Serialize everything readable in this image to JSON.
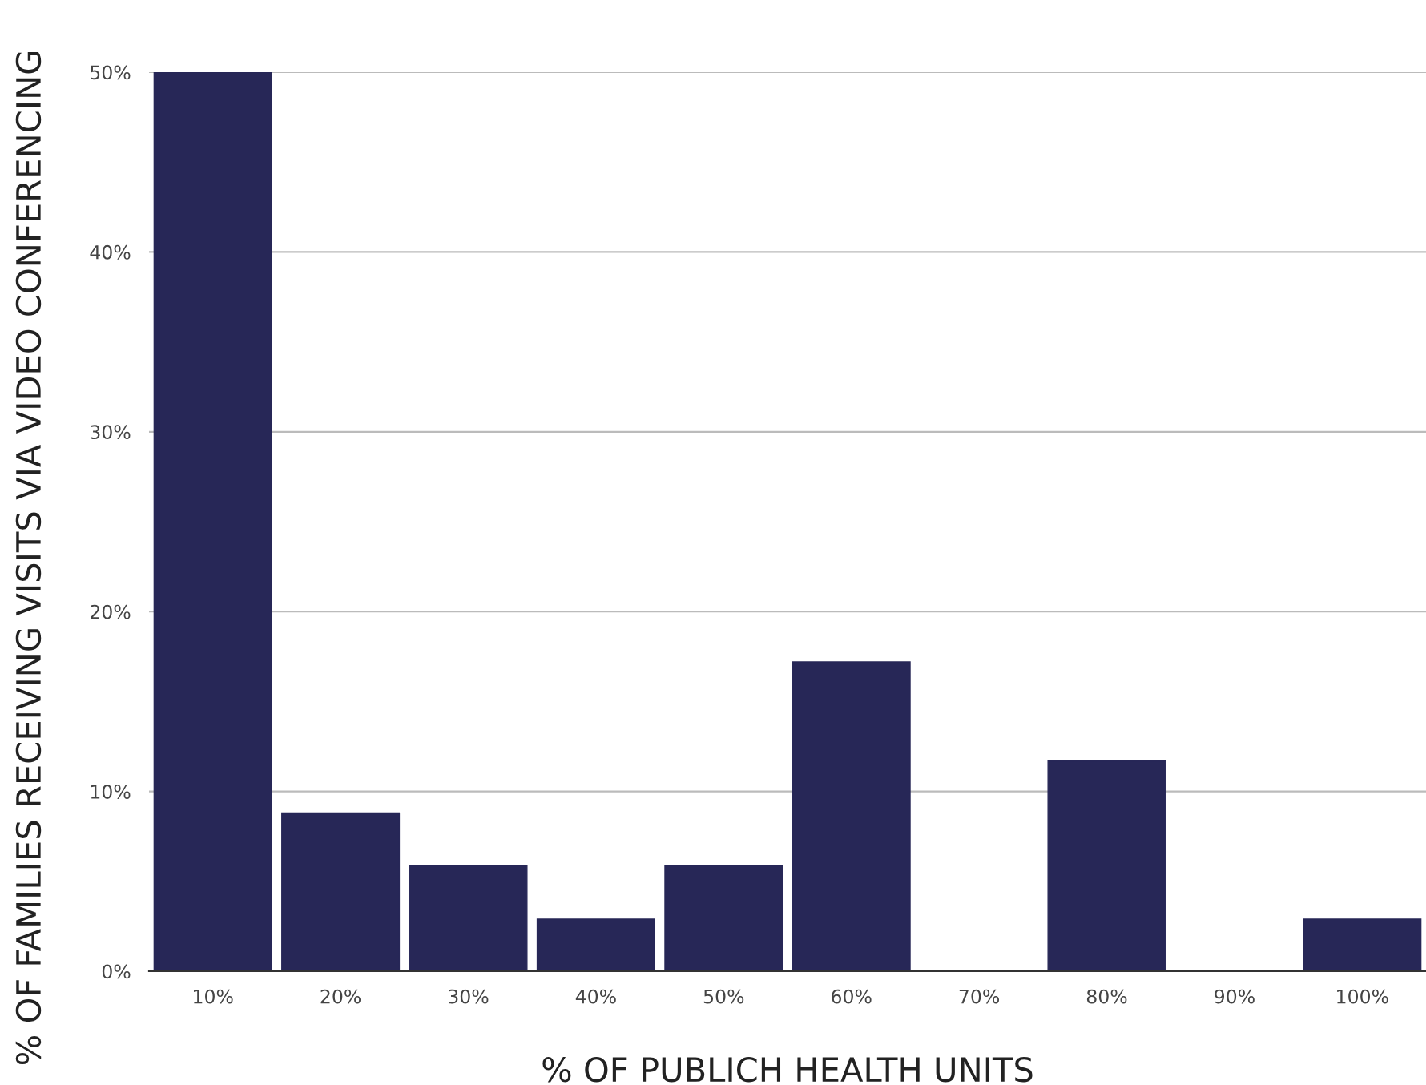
{
  "chart_data": {
    "type": "bar",
    "xlabel": "% OF PUBLICH HEALTH UNITS",
    "ylabel": "% OF FAMILIES RECEIVING VISITS VIA VIDEO CONFERENCING",
    "categories": [
      "10%",
      "20%",
      "30%",
      "40%",
      "50%",
      "60%",
      "70%",
      "80%",
      "90%",
      "100%"
    ],
    "values": [
      50,
      8.8,
      5.9,
      2.9,
      5.9,
      17.2,
      0,
      11.7,
      0,
      2.9
    ],
    "color": "#272757",
    "ylim": [
      0,
      50
    ],
    "yticks": [
      {
        "value": 0,
        "label": "0%"
      },
      {
        "value": 10,
        "label": "10%"
      },
      {
        "value": 20,
        "label": "20%"
      },
      {
        "value": 30,
        "label": "30%"
      },
      {
        "value": 40,
        "label": "40%"
      },
      {
        "value": 50,
        "label": "50%"
      }
    ],
    "grid": "y",
    "legend": false
  }
}
